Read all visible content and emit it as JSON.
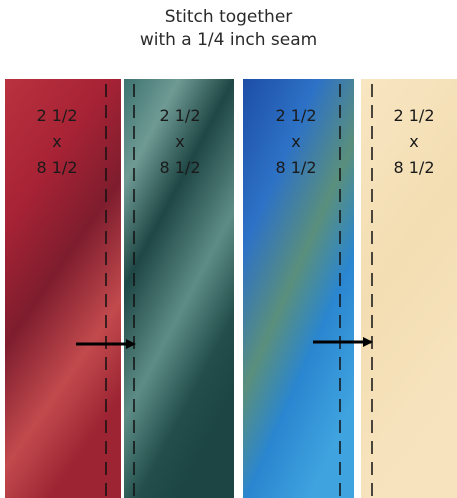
{
  "title": {
    "line1": "Stitch together",
    "line2": "with a 1/4 inch seam"
  },
  "strips": [
    {
      "color": "#b32b3c",
      "dims": [
        "2 1/2",
        "x",
        "8 1/2"
      ]
    },
    {
      "color": "#2f5a57",
      "dims": [
        "2 1/2",
        "x",
        "8 1/2"
      ]
    },
    {
      "color": "#2f74bf",
      "dims": [
        "2 1/2",
        "x",
        "8 1/2"
      ]
    },
    {
      "color": "#f6e2bb",
      "dims": [
        "2 1/2",
        "x",
        "8 1/2"
      ]
    }
  ]
}
